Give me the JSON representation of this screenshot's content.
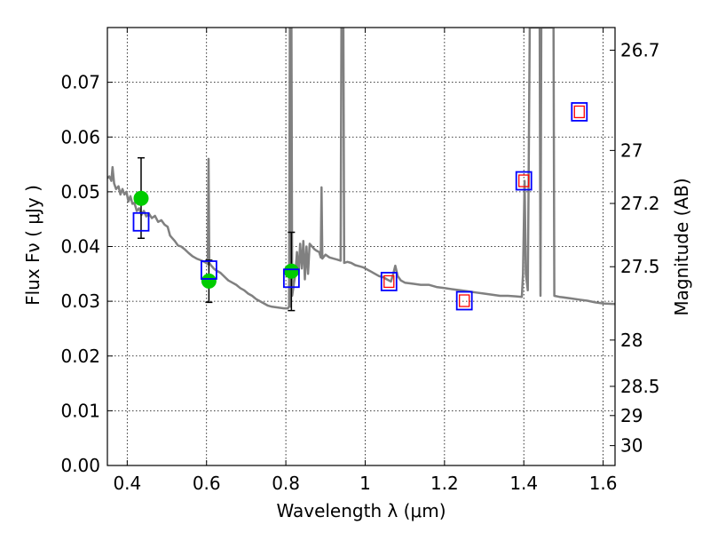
{
  "chart_data": {
    "type": "scatter",
    "xlabel": "Wavelength  λ (μm)",
    "ylabel": "Flux  Fν  ( μJy )",
    "y2label": "Magnitude (AB)",
    "xlim": [
      0.35,
      1.63
    ],
    "ylim": [
      0.0,
      0.08
    ],
    "grid": true,
    "x_ticks": [
      0.4,
      0.6,
      0.8,
      1.0,
      1.2,
      1.4,
      1.6
    ],
    "x_tick_labels": [
      "0.4",
      "0.6",
      "0.8",
      "1",
      "1.2",
      "1.4",
      "1.6"
    ],
    "y_ticks": [
      0.0,
      0.01,
      0.02,
      0.03,
      0.04,
      0.05,
      0.06,
      0.07
    ],
    "y_tick_labels": [
      "0.00",
      "0.01",
      "0.02",
      "0.03",
      "0.04",
      "0.05",
      "0.06",
      "0.07"
    ],
    "y2_ticks": [
      26.7,
      27.0,
      27.2,
      27.5,
      28.0,
      28.5,
      29.0,
      30.0
    ],
    "y2_tick_labels": [
      "26.7",
      "27",
      "27.2",
      "27.5",
      "28",
      "28.5",
      "29",
      "30"
    ],
    "colors": {
      "model": "#808080",
      "observed": "#00cc00",
      "model_phot": "#0000ff",
      "model_phot_inner": "#ff0000",
      "errorbar": "#000000",
      "grid": "#000000"
    },
    "observed": [
      {
        "x": 0.435,
        "y": 0.0488,
        "yerr_low": 0.0415,
        "yerr_high": 0.0562
      },
      {
        "x": 0.606,
        "y": 0.0337,
        "yerr_low": 0.0298,
        "yerr_high": 0.0375
      },
      {
        "x": 0.814,
        "y": 0.0355,
        "yerr_low": 0.0283,
        "yerr_high": 0.0426
      }
    ],
    "model_photometry": [
      {
        "x": 0.435,
        "y": 0.0445,
        "inner": false
      },
      {
        "x": 0.606,
        "y": 0.0357,
        "inner": false
      },
      {
        "x": 0.814,
        "y": 0.0342,
        "inner": false
      },
      {
        "x": 1.06,
        "y": 0.0336,
        "inner": true
      },
      {
        "x": 1.25,
        "y": 0.0301,
        "inner": true
      },
      {
        "x": 1.4,
        "y": 0.052,
        "inner": true
      },
      {
        "x": 1.54,
        "y": 0.0646,
        "inner": true
      }
    ],
    "model_spectrum": [
      [
        0.35,
        0.0525
      ],
      [
        0.355,
        0.0528
      ],
      [
        0.36,
        0.052
      ],
      [
        0.363,
        0.0545
      ],
      [
        0.367,
        0.0515
      ],
      [
        0.372,
        0.0505
      ],
      [
        0.378,
        0.051
      ],
      [
        0.383,
        0.0495
      ],
      [
        0.388,
        0.0505
      ],
      [
        0.393,
        0.0495
      ],
      [
        0.398,
        0.05
      ],
      [
        0.403,
        0.0482
      ],
      [
        0.408,
        0.0492
      ],
      [
        0.413,
        0.0478
      ],
      [
        0.418,
        0.048
      ],
      [
        0.424,
        0.0465
      ],
      [
        0.43,
        0.047
      ],
      [
        0.436,
        0.0458
      ],
      [
        0.442,
        0.0465
      ],
      [
        0.448,
        0.0455
      ],
      [
        0.455,
        0.046
      ],
      [
        0.462,
        0.0452
      ],
      [
        0.47,
        0.0456
      ],
      [
        0.478,
        0.0445
      ],
      [
        0.486,
        0.0448
      ],
      [
        0.494,
        0.044
      ],
      [
        0.502,
        0.0436
      ],
      [
        0.508,
        0.042
      ],
      [
        0.514,
        0.0415
      ],
      [
        0.52,
        0.041
      ],
      [
        0.528,
        0.0402
      ],
      [
        0.536,
        0.04
      ],
      [
        0.545,
        0.0395
      ],
      [
        0.555,
        0.0388
      ],
      [
        0.565,
        0.0382
      ],
      [
        0.575,
        0.0378
      ],
      [
        0.585,
        0.0375
      ],
      [
        0.595,
        0.0372
      ],
      [
        0.603,
        0.0368
      ],
      [
        0.605,
        0.056
      ],
      [
        0.607,
        0.037
      ],
      [
        0.611,
        0.0366
      ],
      [
        0.618,
        0.036
      ],
      [
        0.625,
        0.0356
      ],
      [
        0.635,
        0.0352
      ],
      [
        0.645,
        0.0345
      ],
      [
        0.655,
        0.0338
      ],
      [
        0.665,
        0.0334
      ],
      [
        0.675,
        0.033
      ],
      [
        0.685,
        0.0324
      ],
      [
        0.695,
        0.032
      ],
      [
        0.705,
        0.0314
      ],
      [
        0.715,
        0.031
      ],
      [
        0.725,
        0.0304
      ],
      [
        0.735,
        0.03
      ],
      [
        0.745,
        0.0296
      ],
      [
        0.755,
        0.0292
      ],
      [
        0.765,
        0.029
      ],
      [
        0.775,
        0.0289
      ],
      [
        0.785,
        0.0288
      ],
      [
        0.795,
        0.0287
      ],
      [
        0.805,
        0.0287
      ],
      [
        0.808,
        0.029
      ],
      [
        0.81,
        0.08
      ],
      [
        0.812,
        0.029
      ],
      [
        0.814,
        0.08
      ],
      [
        0.816,
        0.031
      ],
      [
        0.82,
        0.033
      ],
      [
        0.824,
        0.035
      ],
      [
        0.828,
        0.039
      ],
      [
        0.832,
        0.035
      ],
      [
        0.836,
        0.0405
      ],
      [
        0.84,
        0.036
      ],
      [
        0.844,
        0.041
      ],
      [
        0.848,
        0.034
      ],
      [
        0.852,
        0.04
      ],
      [
        0.856,
        0.035
      ],
      [
        0.86,
        0.0405
      ],
      [
        0.866,
        0.04
      ],
      [
        0.872,
        0.0395
      ],
      [
        0.878,
        0.0392
      ],
      [
        0.884,
        0.039
      ],
      [
        0.888,
        0.038
      ],
      [
        0.89,
        0.0508
      ],
      [
        0.892,
        0.0378
      ],
      [
        0.9,
        0.0385
      ],
      [
        0.91,
        0.038
      ],
      [
        0.92,
        0.0378
      ],
      [
        0.93,
        0.0376
      ],
      [
        0.938,
        0.0374
      ],
      [
        0.94,
        0.08
      ],
      [
        0.945,
        0.08
      ],
      [
        0.947,
        0.037
      ],
      [
        0.955,
        0.0372
      ],
      [
        0.965,
        0.037
      ],
      [
        0.975,
        0.0366
      ],
      [
        0.985,
        0.0364
      ],
      [
        0.995,
        0.0362
      ],
      [
        1.005,
        0.0358
      ],
      [
        1.015,
        0.0354
      ],
      [
        1.025,
        0.035
      ],
      [
        1.035,
        0.0346
      ],
      [
        1.045,
        0.0344
      ],
      [
        1.055,
        0.034
      ],
      [
        1.065,
        0.0336
      ],
      [
        1.07,
        0.0348
      ],
      [
        1.076,
        0.0365
      ],
      [
        1.082,
        0.0346
      ],
      [
        1.09,
        0.0338
      ],
      [
        1.1,
        0.0334
      ],
      [
        1.12,
        0.0332
      ],
      [
        1.14,
        0.033
      ],
      [
        1.16,
        0.033
      ],
      [
        1.18,
        0.0326
      ],
      [
        1.2,
        0.0324
      ],
      [
        1.22,
        0.0322
      ],
      [
        1.24,
        0.032
      ],
      [
        1.26,
        0.0318
      ],
      [
        1.28,
        0.0316
      ],
      [
        1.3,
        0.0314
      ],
      [
        1.32,
        0.0312
      ],
      [
        1.34,
        0.031
      ],
      [
        1.36,
        0.031
      ],
      [
        1.38,
        0.0309
      ],
      [
        1.395,
        0.0308
      ],
      [
        1.398,
        0.035
      ],
      [
        1.402,
        0.052
      ],
      [
        1.405,
        0.035
      ],
      [
        1.41,
        0.032
      ],
      [
        1.415,
        0.08
      ],
      [
        1.425,
        0.08
      ],
      [
        1.43,
        0.08
      ],
      [
        1.44,
        0.08
      ],
      [
        1.442,
        0.031
      ],
      [
        1.444,
        0.08
      ],
      [
        1.455,
        0.08
      ],
      [
        1.465,
        0.08
      ],
      [
        1.475,
        0.08
      ],
      [
        1.477,
        0.031
      ],
      [
        1.49,
        0.0308
      ],
      [
        1.5,
        0.0307
      ],
      [
        1.52,
        0.0305
      ],
      [
        1.54,
        0.0303
      ],
      [
        1.56,
        0.0301
      ],
      [
        1.58,
        0.0298
      ],
      [
        1.6,
        0.0296
      ],
      [
        1.63,
        0.0295
      ]
    ]
  }
}
